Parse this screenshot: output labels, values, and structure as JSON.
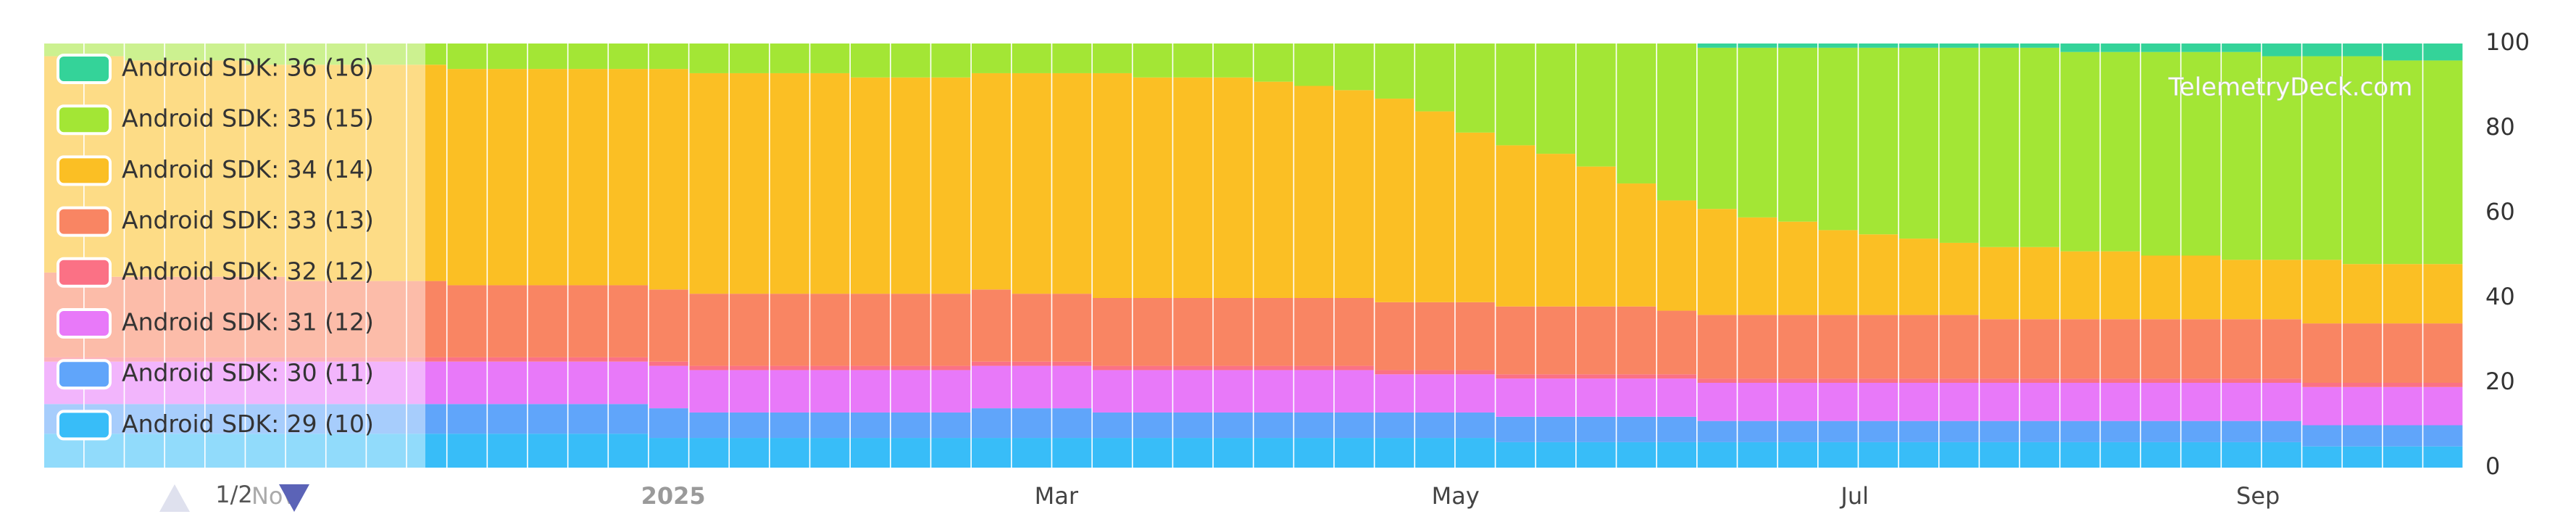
{
  "chart_data": {
    "type": "stacked-bar",
    "watermark": "TelemetryDeck.com",
    "pager": "1/2",
    "x": [
      0,
      1,
      2,
      3,
      4,
      5,
      6,
      7,
      8,
      9,
      10,
      11,
      12,
      13,
      14,
      15,
      16,
      17,
      18,
      19,
      20,
      21,
      22,
      23,
      24,
      25,
      26,
      27,
      28,
      29,
      30,
      31,
      32,
      33,
      34,
      35,
      36,
      37,
      38,
      39,
      40,
      41,
      42,
      43,
      44,
      45,
      46,
      47,
      48,
      49,
      50,
      51,
      52,
      53,
      54,
      55,
      56,
      57,
      58,
      59
    ],
    "xlim": [
      -0.5,
      59.5
    ],
    "xticks": [
      {
        "value": 5.2,
        "label": "Nov"
      },
      {
        "value": 15.1,
        "label": "2025"
      },
      {
        "value": 24.6,
        "label": "Mar"
      },
      {
        "value": 34.5,
        "label": "May"
      },
      {
        "value": 44.4,
        "label": "Jul"
      },
      {
        "value": 54.4,
        "label": "Sep"
      }
    ],
    "ylim": [
      0,
      100
    ],
    "yticks": [
      0,
      20,
      40,
      60,
      80,
      100
    ],
    "series": [
      {
        "name": "Android SDK: 36 (16)",
        "color": "#34d399",
        "values": [
          0,
          0,
          0,
          0,
          0,
          0,
          0,
          0,
          0,
          0,
          0,
          0,
          0,
          0,
          0,
          0,
          0,
          0,
          0,
          0,
          0,
          0,
          0,
          0,
          0,
          0,
          0,
          0,
          0,
          0,
          0,
          0,
          0,
          0,
          0,
          0,
          0,
          0,
          0,
          0,
          0,
          1,
          1,
          1,
          1,
          1,
          1,
          1,
          1,
          1,
          2,
          2,
          2,
          2,
          2,
          3,
          3,
          3,
          4,
          4
        ]
      },
      {
        "name": "Android SDK: 35 (15)",
        "color": "#a3e635",
        "values": [
          3,
          3,
          4,
          4,
          4,
          5,
          5,
          5,
          5,
          5,
          6,
          6,
          6,
          6,
          6,
          6,
          7,
          7,
          7,
          7,
          8,
          8,
          8,
          7,
          7,
          7,
          7,
          8,
          8,
          8,
          9,
          10,
          11,
          13,
          16,
          21,
          24,
          26,
          29,
          33,
          37,
          38,
          40,
          41,
          43,
          44,
          45,
          46,
          47,
          47,
          47,
          47,
          48,
          48,
          49,
          48,
          48,
          49,
          48,
          48
        ]
      },
      {
        "name": "Android SDK: 34 (14)",
        "color": "#fbbf24",
        "values": [
          51,
          52,
          51,
          51,
          51,
          50,
          51,
          51,
          51,
          51,
          51,
          51,
          51,
          51,
          51,
          52,
          52,
          52,
          52,
          52,
          51,
          51,
          51,
          51,
          52,
          52,
          53,
          52,
          52,
          52,
          51,
          50,
          49,
          48,
          45,
          40,
          38,
          36,
          33,
          29,
          26,
          25,
          23,
          22,
          20,
          19,
          18,
          17,
          17,
          17,
          16,
          16,
          15,
          15,
          14,
          14,
          15,
          14,
          14,
          14
        ]
      },
      {
        "name": "Android SDK: 33 (13)",
        "color": "#f98563",
        "values": [
          20,
          19,
          19,
          19,
          19,
          19,
          18,
          18,
          18,
          18,
          17,
          17,
          17,
          17,
          17,
          17,
          17,
          17,
          17,
          17,
          17,
          17,
          17,
          17,
          16,
          16,
          16,
          16,
          16,
          16,
          16,
          16,
          16,
          16,
          16,
          16,
          16,
          16,
          16,
          16,
          15,
          15,
          15,
          15,
          15,
          15,
          15,
          15,
          14,
          14,
          14,
          14,
          14,
          14,
          14,
          14,
          14,
          14,
          14,
          14
        ]
      },
      {
        "name": "Android SDK: 32 (12)",
        "color": "#fb7185",
        "values": [
          1,
          1,
          1,
          1,
          1,
          1,
          1,
          1,
          1,
          1,
          1,
          1,
          1,
          1,
          1,
          1,
          1,
          1,
          1,
          1,
          1,
          1,
          1,
          1,
          1,
          1,
          1,
          1,
          1,
          1,
          1,
          1,
          1,
          1,
          1,
          1,
          1,
          1,
          1,
          1,
          1,
          1,
          1,
          1,
          1,
          1,
          1,
          1,
          1,
          1,
          1,
          1,
          1,
          1,
          1,
          1,
          1,
          1,
          1,
          1
        ]
      },
      {
        "name": "Android SDK: 31 (12)",
        "color": "#e879f9",
        "values": [
          10,
          10,
          10,
          10,
          10,
          10,
          10,
          10,
          10,
          10,
          10,
          10,
          10,
          10,
          10,
          10,
          10,
          10,
          10,
          10,
          10,
          10,
          10,
          10,
          10,
          10,
          10,
          10,
          10,
          10,
          10,
          10,
          10,
          9,
          9,
          9,
          9,
          9,
          9,
          9,
          9,
          9,
          9,
          9,
          9,
          9,
          9,
          9,
          9,
          9,
          9,
          9,
          9,
          9,
          9,
          9,
          9,
          9,
          9,
          9
        ]
      },
      {
        "name": "Android SDK: 30 (11)",
        "color": "#60a5fa",
        "values": [
          7,
          7,
          7,
          7,
          7,
          7,
          7,
          7,
          7,
          7,
          7,
          7,
          7,
          7,
          7,
          7,
          6,
          6,
          6,
          6,
          6,
          6,
          6,
          7,
          7,
          7,
          6,
          6,
          6,
          6,
          6,
          6,
          6,
          6,
          6,
          6,
          6,
          6,
          6,
          6,
          6,
          5,
          5,
          5,
          5,
          5,
          5,
          5,
          5,
          5,
          5,
          5,
          5,
          5,
          5,
          5,
          5,
          5,
          5,
          5
        ]
      },
      {
        "name": "Android SDK: 29 (10)",
        "color": "#38bdf8",
        "values": [
          8,
          8,
          8,
          8,
          8,
          8,
          8,
          8,
          8,
          8,
          8,
          8,
          8,
          8,
          8,
          7,
          7,
          7,
          7,
          7,
          7,
          7,
          7,
          7,
          7,
          7,
          7,
          7,
          7,
          7,
          7,
          7,
          7,
          7,
          7,
          7,
          6,
          6,
          6,
          6,
          6,
          6,
          6,
          6,
          6,
          6,
          6,
          6,
          6,
          6,
          6,
          6,
          6,
          6,
          6,
          6,
          5,
          5,
          5,
          5
        ]
      }
    ]
  }
}
